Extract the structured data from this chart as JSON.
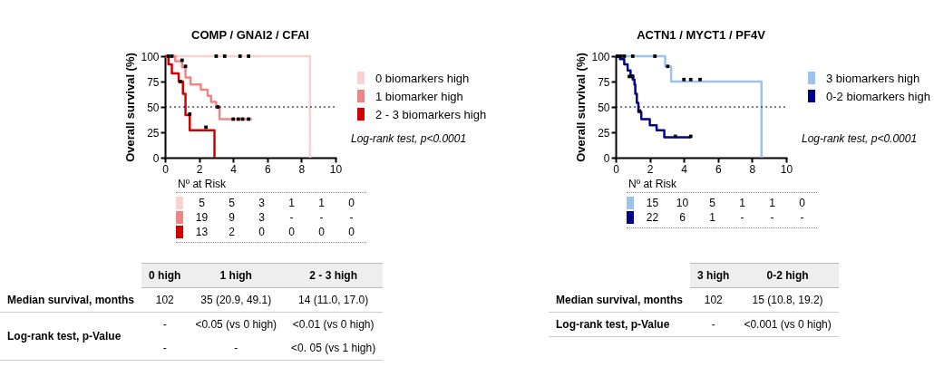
{
  "chart_data": [
    {
      "type": "step",
      "title": "COMP / GNAI2 / CFAI",
      "ylabel": "Overall survival (%)",
      "xlim": [
        0,
        10
      ],
      "xticks": [
        0,
        2,
        4,
        6,
        8,
        10
      ],
      "ylim": [
        0,
        100
      ],
      "yticks": [
        0,
        25,
        50,
        75,
        100
      ],
      "legend": "right",
      "grid": false,
      "series": [
        {
          "name": "0 biomarkers high",
          "color": "#f9d2d2",
          "x": [
            0,
            2,
            6,
            8.5,
            8.5
          ],
          "values": [
            100,
            100,
            100,
            100,
            0
          ]
        },
        {
          "name": "1 biomarker high",
          "color": "#f08585",
          "x": [
            0,
            0.6,
            1.0,
            1.2,
            1.5,
            2.1,
            2.5,
            2.7,
            3.0,
            3.2,
            5.1
          ],
          "values": [
            100,
            95,
            89,
            79,
            72,
            67,
            61,
            55,
            49,
            38,
            38
          ]
        },
        {
          "name": "2 - 3 biomarkers high",
          "color": "#d40000",
          "x": [
            0,
            0.2,
            0.4,
            0.8,
            1.05,
            1.2,
            1.45,
            2.9,
            2.9
          ],
          "values": [
            100,
            92,
            83,
            75,
            63,
            42,
            27,
            27,
            0
          ]
        },
        {
          "type": "scatter",
          "marker": "square",
          "color": "#000000",
          "x": [
            0.2,
            0.4,
            3.0,
            3.5,
            4.4,
            4.9,
            1.0,
            1.2,
            3.1,
            4.0,
            4.3,
            4.55,
            4.9,
            0.9,
            1.45,
            2.4
          ],
          "values": [
            100,
            100,
            100,
            100,
            100,
            100,
            96,
            90,
            50,
            38,
            38,
            38,
            38,
            75,
            43,
            30
          ]
        }
      ],
      "ref_lines": [
        {
          "axis": "y",
          "value": 50,
          "color": "#000000",
          "line_style": "dotted"
        }
      ],
      "annotations": [
        "Log-rank test, p<0.0001",
        "Nº at Risk",
        "5 5 3 1 1 0",
        "19 9 3 - - -",
        "13 2 0 0 0 0"
      ]
    },
    {
      "type": "step",
      "title": "ACTN1 / MYCT1 / PF4V",
      "ylabel": "Overall survival (%)",
      "xlim": [
        0,
        10
      ],
      "xticks": [
        0,
        2,
        4,
        6,
        8,
        10
      ],
      "ylim": [
        0,
        100
      ],
      "yticks": [
        0,
        25,
        50,
        75,
        100
      ],
      "legend": "right",
      "grid": false,
      "series": [
        {
          "name": "3 biomarkers high",
          "color": "#9cc3f0",
          "x": [
            0,
            2.9,
            3.25,
            8.55,
            8.55
          ],
          "values": [
            100,
            90,
            75,
            75,
            0
          ]
        },
        {
          "name": "0-2 biomarkers high",
          "color": "#00008b",
          "x": [
            0,
            0.25,
            0.5,
            0.7,
            0.87,
            1.0,
            1.1,
            1.15,
            1.24,
            1.33,
            1.5,
            2.0,
            2.4,
            2.85,
            4.4
          ],
          "values": [
            100,
            97,
            92,
            86,
            81,
            77,
            72,
            63,
            54,
            45,
            38,
            32,
            27,
            20,
            20
          ]
        },
        {
          "type": "scatter",
          "marker": "square",
          "color": "#000000",
          "x": [
            0.1,
            0.3,
            0.5,
            1.0,
            2.3,
            3.05,
            4.0,
            4.4,
            4.95,
            0.8,
            1.0,
            1.4,
            3.5,
            4.4
          ],
          "values": [
            100,
            100,
            100,
            100,
            100,
            90,
            77,
            77,
            77,
            80,
            80,
            46,
            21,
            21
          ]
        }
      ],
      "ref_lines": [
        {
          "axis": "y",
          "value": 50,
          "color": "#000000",
          "line_style": "dotted"
        }
      ],
      "annotations": [
        "Log-rank test, p<0.0001",
        "Nº at Risk",
        "15 10 5 1 1 0",
        "22 6 1 - - -"
      ]
    },
    {
      "type": "other",
      "categories": [
        "0 high",
        "1 high",
        "2 - 3 high"
      ],
      "y_categories": [
        "Median survival, months",
        "Log-rank test, p-Value",
        null
      ],
      "cell_labels": [
        [
          "102",
          "35 (20.9, 49.1)",
          "14 (11.0, 17.0)"
        ],
        [
          "-",
          "<0.05 (vs 0 high)",
          "<0.01 (vs 0 high)"
        ],
        [
          "-",
          "-",
          "<0. 05 (vs 1 high)"
        ]
      ]
    },
    {
      "type": "other",
      "categories": [
        "3 high",
        "0-2 high"
      ],
      "y_categories": [
        "Median survival, months",
        "Log-rank test, p-Value"
      ],
      "cell_labels": [
        [
          "102",
          "15 (10.8, 19.2)"
        ],
        [
          "-",
          "<0.001 (vs 0 high)"
        ]
      ]
    }
  ]
}
